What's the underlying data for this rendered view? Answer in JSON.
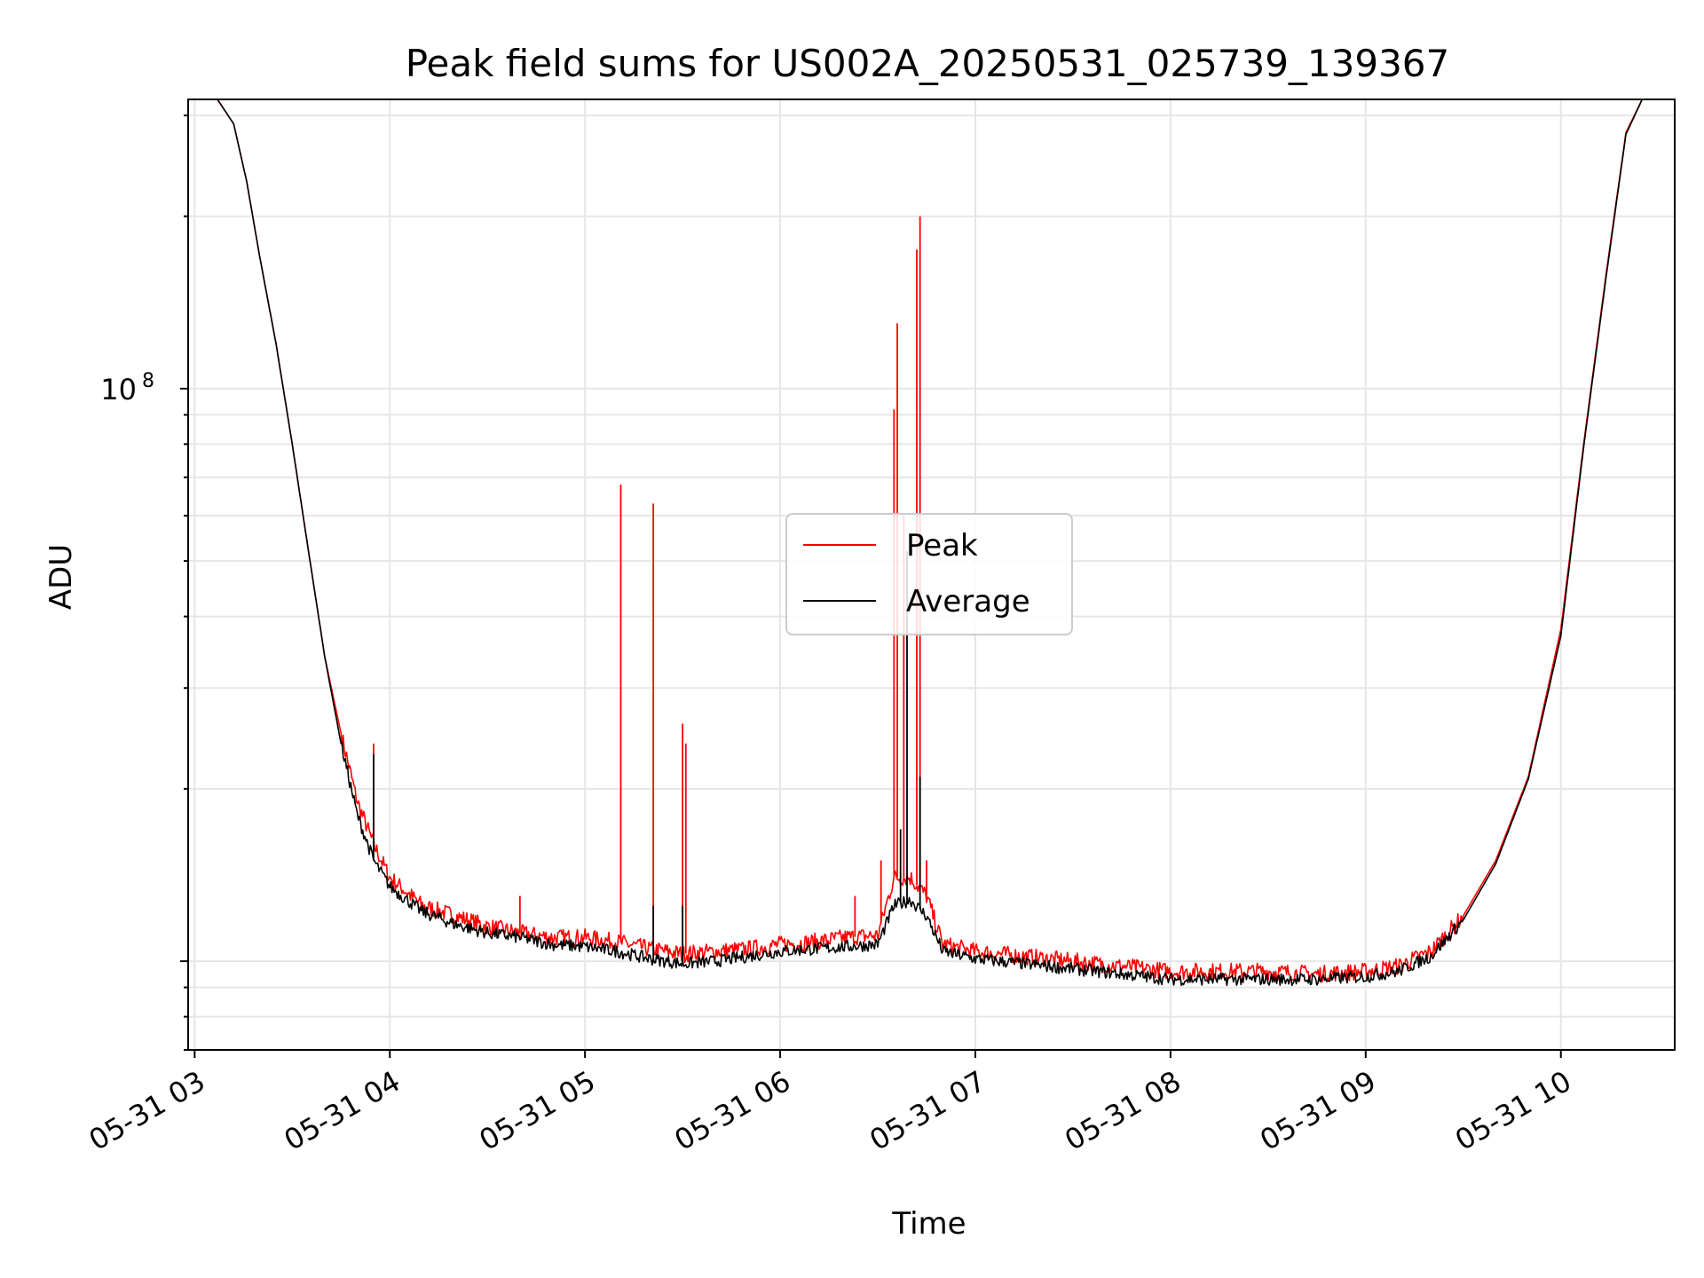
{
  "chart_data": {
    "type": "line",
    "title": "Peak field sums for US002A_20250531_025739_139367",
    "xlabel": "Time",
    "ylabel": "ADU",
    "y_scale": "log",
    "ylim": [
      7000000,
      320000000
    ],
    "xlim": [
      "05-31 02:58",
      "05-31 10:35"
    ],
    "x_ticks": [
      "05-31 03",
      "05-31 04",
      "05-31 05",
      "05-31 06",
      "05-31 07",
      "05-31 08",
      "05-31 09",
      "05-31 10"
    ],
    "y_ticks": [
      {
        "base": "10",
        "exp": "8",
        "value": 100000000
      }
    ],
    "grid": true,
    "legend_position": "center",
    "x_unit": "time (hh:mm)",
    "series": [
      {
        "name": "Peak",
        "color": "#ff0000",
        "x": [
          "03:00",
          "03:07",
          "03:12",
          "03:16",
          "03:20",
          "03:25",
          "03:30",
          "03:35",
          "03:40",
          "03:45",
          "03:50",
          "03:55",
          "04:00",
          "04:10",
          "04:20",
          "04:30",
          "04:40",
          "04:50",
          "05:00",
          "05:10",
          "05:20",
          "05:30",
          "05:40",
          "05:50",
          "06:00",
          "06:10",
          "06:20",
          "06:30",
          "06:35",
          "06:40",
          "06:45",
          "06:50",
          "07:00",
          "07:15",
          "07:30",
          "07:45",
          "08:00",
          "08:15",
          "08:30",
          "08:45",
          "09:00",
          "09:10",
          "09:20",
          "09:30",
          "09:40",
          "09:50",
          "10:00",
          "10:07",
          "10:14",
          "10:20",
          "10:25"
        ],
        "y": [
          320000000,
          320000000,
          290000000,
          230000000,
          170000000,
          120000000,
          80000000,
          52000000,
          34000000,
          25000000,
          19000000,
          16000000,
          14000000,
          12500000,
          12000000,
          11500000,
          11200000,
          11000000,
          11000000,
          10800000,
          10500000,
          10300000,
          10400000,
          10500000,
          10700000,
          10800000,
          11000000,
          11100000,
          14000000,
          14000000,
          13000000,
          10700000,
          10400000,
          10200000,
          10000000,
          9800000,
          9600000,
          9600000,
          9600000,
          9500000,
          9600000,
          9800000,
          10400000,
          12000000,
          15000000,
          21000000,
          38000000,
          80000000,
          160000000,
          280000000,
          320000000
        ],
        "spikes": [
          {
            "x": "03:55",
            "y": 24000000
          },
          {
            "x": "04:40",
            "y": 13000000
          },
          {
            "x": "05:11",
            "y": 68000000
          },
          {
            "x": "05:21",
            "y": 63000000
          },
          {
            "x": "05:30",
            "y": 26000000
          },
          {
            "x": "05:31",
            "y": 24000000
          },
          {
            "x": "06:23",
            "y": 13000000
          },
          {
            "x": "06:31",
            "y": 15000000
          },
          {
            "x": "06:35",
            "y": 92000000
          },
          {
            "x": "06:36",
            "y": 130000000
          },
          {
            "x": "06:38",
            "y": 60000000
          },
          {
            "x": "06:42",
            "y": 175000000
          },
          {
            "x": "06:43",
            "y": 200000000
          },
          {
            "x": "06:45",
            "y": 15000000
          }
        ]
      },
      {
        "name": "Average",
        "color": "#000000",
        "x": [
          "03:00",
          "03:07",
          "03:12",
          "03:16",
          "03:20",
          "03:25",
          "03:30",
          "03:35",
          "03:40",
          "03:45",
          "03:50",
          "03:55",
          "04:00",
          "04:10",
          "04:20",
          "04:30",
          "04:40",
          "04:50",
          "05:00",
          "05:10",
          "05:20",
          "05:30",
          "05:40",
          "05:50",
          "06:00",
          "06:10",
          "06:20",
          "06:30",
          "06:35",
          "06:40",
          "06:45",
          "06:50",
          "07:00",
          "07:15",
          "07:30",
          "07:45",
          "08:00",
          "08:15",
          "08:30",
          "08:45",
          "09:00",
          "09:10",
          "09:20",
          "09:30",
          "09:40",
          "09:50",
          "10:00",
          "10:07",
          "10:14",
          "10:20",
          "10:25"
        ],
        "y": [
          320000000,
          320000000,
          290000000,
          230000000,
          170000000,
          120000000,
          80000000,
          52000000,
          34000000,
          24000000,
          18000000,
          15000000,
          13500000,
          12200000,
          11600000,
          11200000,
          11000000,
          10700000,
          10600000,
          10400000,
          10100000,
          9900000,
          10000000,
          10200000,
          10400000,
          10500000,
          10600000,
          10700000,
          12500000,
          12800000,
          12000000,
          10400000,
          10100000,
          9900000,
          9700000,
          9500000,
          9300000,
          9300000,
          9300000,
          9300000,
          9400000,
          9600000,
          10200000,
          11800000,
          14800000,
          20800000,
          37000000,
          79000000,
          158000000,
          278000000,
          320000000
        ],
        "spikes": [
          {
            "x": "03:55",
            "y": 23000000
          },
          {
            "x": "05:21",
            "y": 12500000
          },
          {
            "x": "05:30",
            "y": 12500000
          },
          {
            "x": "06:37",
            "y": 17000000
          },
          {
            "x": "06:39",
            "y": 52000000
          },
          {
            "x": "06:43",
            "y": 21000000
          }
        ]
      }
    ]
  }
}
